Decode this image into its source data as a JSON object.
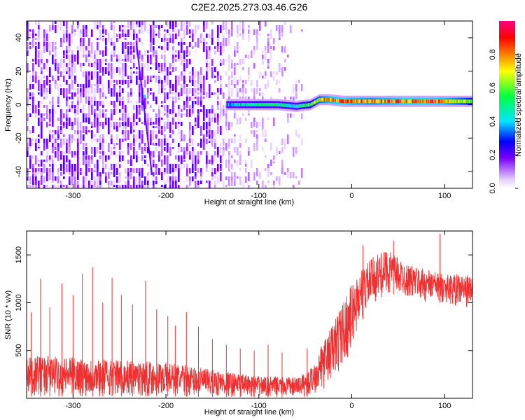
{
  "figure_title": "C2E2.2025.273.03.46.G26",
  "chart_data": [
    {
      "type": "heatmap",
      "name": "spectrogram",
      "title": "C2E2.2025.273.03.46.G26",
      "xlabel": "Height of straight line (km)",
      "ylabel": "Frequency (Hz)",
      "xlim": [
        -350,
        130
      ],
      "ylim": [
        -50,
        50
      ],
      "x_ticks": [
        -300,
        -200,
        -100,
        0,
        100
      ],
      "y_ticks": [
        -40,
        -20,
        0,
        20,
        40
      ],
      "colorbar": {
        "label": "Normalized spectral amplitude",
        "range": [
          0,
          1
        ],
        "ticks": [
          "0.0",
          "0.2",
          "0.4",
          "0.6",
          "0.8"
        ],
        "tick_values": [
          0,
          0.2,
          0.4,
          0.6,
          0.8
        ],
        "colors": [
          "#ffffff",
          "#e6d2ff",
          "#7a00ff",
          "#0000ff",
          "#00e5ff",
          "#00ff40",
          "#ffff00",
          "#ff8000",
          "#ff0000",
          "#ff0080"
        ]
      },
      "noise_region_x": [
        -350,
        -52
      ],
      "signal_trace": {
        "x": [
          -135,
          -120,
          -100,
          -80,
          -60,
          -45,
          -35,
          -25,
          -10,
          0,
          20,
          40,
          60,
          80,
          100,
          120,
          130
        ],
        "freq": [
          0,
          0,
          0,
          0,
          -1,
          0,
          3,
          3,
          2,
          2,
          2,
          2,
          2,
          2,
          2,
          2,
          2
        ],
        "amplitude": [
          0.35,
          0.45,
          0.55,
          0.5,
          0.5,
          0.6,
          0.75,
          0.85,
          0.9,
          0.85,
          0.8,
          0.85,
          0.9,
          0.9,
          0.85,
          0.7,
          0.6
        ]
      },
      "diagonal_streak": {
        "x": [
          -232,
          -215
        ],
        "freq": [
          38,
          -42
        ]
      }
    },
    {
      "type": "line",
      "name": "snr",
      "xlabel": "Height of straight line (km)",
      "ylabel": "SNR (10 * v/v)",
      "xlim": [
        -350,
        130
      ],
      "ylim": [
        0,
        1750
      ],
      "x_ticks": [
        -300,
        -200,
        -100,
        0,
        100
      ],
      "y_ticks": [
        500,
        1000,
        1500
      ],
      "color": "#f03030",
      "envelope": {
        "x": [
          -350,
          -300,
          -250,
          -200,
          -150,
          -100,
          -60,
          -45,
          -30,
          -15,
          0,
          10,
          25,
          40,
          60,
          80,
          100,
          115,
          130
        ],
        "low": [
          20,
          20,
          20,
          20,
          15,
          10,
          10,
          20,
          100,
          250,
          500,
          800,
          1000,
          1100,
          1050,
          1000,
          1000,
          950,
          950
        ],
        "high": [
          450,
          430,
          400,
          380,
          300,
          230,
          220,
          300,
          600,
          900,
          1200,
          1350,
          1500,
          1550,
          1400,
          1350,
          1300,
          1300,
          1280
        ]
      },
      "spikes": [
        {
          "x": -345,
          "y": 900
        },
        {
          "x": -335,
          "y": 1250
        },
        {
          "x": -325,
          "y": 950
        },
        {
          "x": -312,
          "y": 1200
        },
        {
          "x": -300,
          "y": 1080
        },
        {
          "x": -290,
          "y": 1300
        },
        {
          "x": -279,
          "y": 1370
        },
        {
          "x": -268,
          "y": 1000
        },
        {
          "x": -258,
          "y": 1260
        },
        {
          "x": -248,
          "y": 1080
        },
        {
          "x": -236,
          "y": 980
        },
        {
          "x": -222,
          "y": 1230
        },
        {
          "x": -210,
          "y": 930
        },
        {
          "x": -198,
          "y": 860
        },
        {
          "x": -190,
          "y": 760
        },
        {
          "x": -178,
          "y": 900
        },
        {
          "x": -165,
          "y": 750
        },
        {
          "x": -150,
          "y": 620
        },
        {
          "x": -135,
          "y": 560
        },
        {
          "x": -120,
          "y": 520
        },
        {
          "x": -105,
          "y": 500
        },
        {
          "x": -90,
          "y": 560
        },
        {
          "x": -75,
          "y": 480
        },
        {
          "x": -48,
          "y": 520
        },
        {
          "x": 12,
          "y": 1600
        },
        {
          "x": 45,
          "y": 1650
        },
        {
          "x": 95,
          "y": 1720
        }
      ]
    }
  ]
}
